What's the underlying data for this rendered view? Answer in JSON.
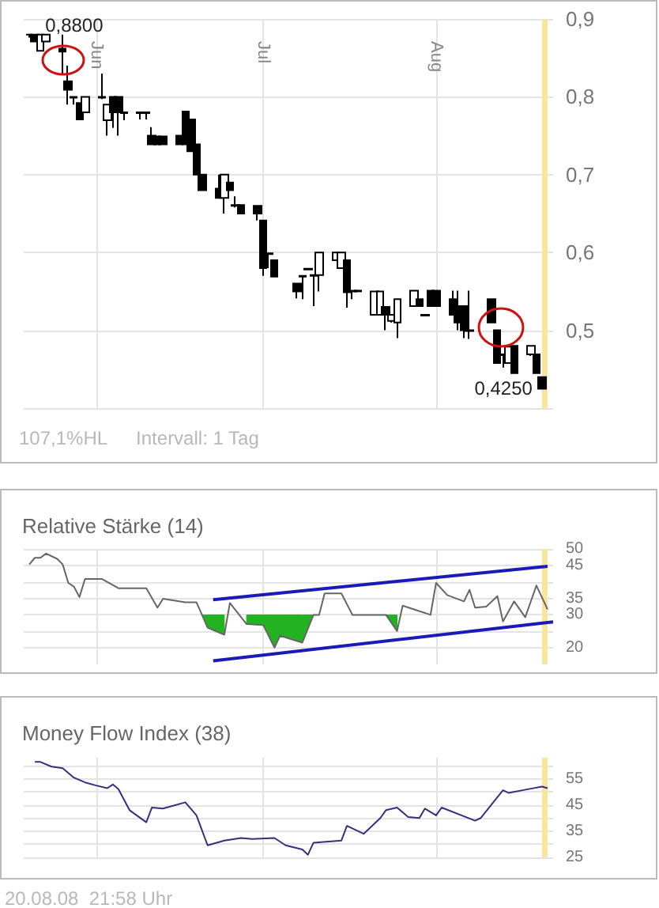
{
  "chart_data": [
    {
      "type": "candlestick",
      "color": "#000000",
      "x": [
        "--05-20",
        "--05-21",
        "--05-22",
        "--05-23",
        "--05-26",
        "--05-27",
        "--05-28",
        "--05-29",
        "--05-30",
        "--06-02",
        "--06-03",
        "--06-04",
        "--06-05",
        "--06-06",
        "--06-09",
        "--06-10",
        "--06-11",
        "--06-12",
        "--06-13",
        "--06-16",
        "--06-17",
        "--06-18",
        "--06-19",
        "--06-20",
        "--06-23",
        "--06-24",
        "--06-25",
        "--06-26",
        "--06-27",
        "--06-30",
        "--07-01",
        "--07-02",
        "--07-03",
        "--07-07",
        "--07-08",
        "--07-09",
        "--07-10",
        "--07-11",
        "--07-14",
        "--07-15",
        "--07-16",
        "--07-17",
        "--07-18",
        "--07-21",
        "--07-22",
        "--07-23",
        "--07-24",
        "--07-25",
        "--07-28",
        "--07-29",
        "--07-30",
        "--07-31",
        "--08-01",
        "--08-04",
        "--08-05",
        "--08-06",
        "--08-07",
        "--08-11",
        "--08-12",
        "--08-13",
        "--08-14",
        "--08-15",
        "--08-18",
        "--08-19",
        "--08-20"
      ],
      "ohlc": [
        [
          0.88,
          0.88,
          0.876,
          0.88
        ],
        [
          0.88,
          0.88,
          0.871,
          0.871
        ],
        [
          0.859,
          0.88,
          0.859,
          0.88
        ],
        [
          0.871,
          0.88,
          0.871,
          0.88
        ],
        [
          0.862,
          0.88,
          0.83,
          0.858
        ],
        [
          0.82,
          0.84,
          0.79,
          0.809
        ],
        [
          0.8,
          0.8,
          0.79,
          0.799
        ],
        [
          0.792,
          0.792,
          0.771,
          0.771
        ],
        [
          0.78,
          0.8,
          0.78,
          0.8
        ],
        [
          0.8,
          0.83,
          0.797,
          0.799
        ],
        [
          0.77,
          0.79,
          0.75,
          0.79
        ],
        [
          0.8,
          0.8,
          0.76,
          0.78
        ],
        [
          0.8,
          0.8,
          0.75,
          0.78
        ],
        [
          0.78,
          0.78,
          0.77,
          0.779
        ],
        [
          0.78,
          0.78,
          0.771,
          0.779
        ],
        [
          0.78,
          0.78,
          0.771,
          0.779
        ],
        [
          0.75,
          0.761,
          0.739,
          0.739
        ],
        [
          0.749,
          0.75,
          0.739,
          0.739
        ],
        [
          0.749,
          0.75,
          0.739,
          0.739
        ],
        [
          0.75,
          0.75,
          0.739,
          0.739
        ],
        [
          0.781,
          0.781,
          0.739,
          0.739
        ],
        [
          0.771,
          0.771,
          0.73,
          0.73
        ],
        [
          0.739,
          0.739,
          0.7,
          0.7
        ],
        [
          0.7,
          0.7,
          0.68,
          0.68
        ],
        [
          0.682,
          0.7,
          0.67,
          0.67
        ],
        [
          0.67,
          0.7,
          0.65,
          0.7
        ],
        [
          0.69,
          0.69,
          0.68,
          0.68
        ],
        [
          0.661,
          0.672,
          0.658,
          0.66
        ],
        [
          0.661,
          0.661,
          0.65,
          0.65
        ],
        [
          0.66,
          0.66,
          0.641,
          0.65
        ],
        [
          0.641,
          0.641,
          0.57,
          0.58
        ],
        [
          0.599,
          0.6,
          0.58,
          0.598
        ],
        [
          0.59,
          0.59,
          0.569,
          0.569
        ],
        [
          0.56,
          0.56,
          0.541,
          0.55
        ],
        [
          0.57,
          0.571,
          0.54,
          0.569
        ],
        [
          0.579,
          0.58,
          0.578,
          0.578
        ],
        [
          0.571,
          0.571,
          0.531,
          0.57
        ],
        [
          0.571,
          0.6,
          0.55,
          0.6
        ],
        [
          0.59,
          0.6,
          0.59,
          0.6
        ],
        [
          0.58,
          0.6,
          0.58,
          0.6
        ],
        [
          0.59,
          0.59,
          0.529,
          0.549
        ],
        [
          0.551,
          0.551,
          0.54,
          0.55
        ],
        [
          0.551,
          0.551,
          0.55,
          0.55
        ],
        [
          0.52,
          0.551,
          0.52,
          0.55
        ],
        [
          0.52,
          0.551,
          0.519,
          0.55
        ],
        [
          0.53,
          0.53,
          0.5,
          0.52
        ],
        [
          0.512,
          0.52,
          0.51,
          0.52
        ],
        [
          0.51,
          0.54,
          0.49,
          0.54
        ],
        [
          0.531,
          0.551,
          0.531,
          0.551
        ],
        [
          0.54,
          0.54,
          0.531,
          0.531
        ],
        [
          0.52,
          0.52,
          0.518,
          0.519
        ],
        [
          0.551,
          0.551,
          0.531,
          0.531
        ],
        [
          0.551,
          0.551,
          0.531,
          0.531
        ],
        [
          0.54,
          0.551,
          0.52,
          0.52
        ],
        [
          0.531,
          0.551,
          0.5,
          0.51
        ],
        [
          0.531,
          0.531,
          0.49,
          0.5
        ],
        [
          0.5,
          0.551,
          0.489,
          0.499
        ],
        [
          0.54,
          0.54,
          0.51,
          0.51
        ],
        [
          0.5,
          0.5,
          0.458,
          0.458
        ],
        [
          0.469,
          0.469,
          0.452,
          0.468
        ],
        [
          0.458,
          0.479,
          0.458,
          0.479
        ],
        [
          0.48,
          0.48,
          0.445,
          0.445
        ],
        [
          0.469,
          0.48,
          0.467,
          0.48
        ],
        [
          0.469,
          0.469,
          0.445,
          0.445
        ],
        [
          0.44,
          0.44,
          0.425,
          0.425
        ]
      ],
      "xlim": [
        "--05-19",
        "--08-22"
      ],
      "xticks": [
        {
          "value": "--06-01",
          "label": "Jun"
        },
        {
          "value": "--07-01",
          "label": "Jul"
        },
        {
          "value": "--08-01",
          "label": "Aug"
        }
      ],
      "ylim": [
        0.4,
        0.9
      ],
      "yticks": [
        {
          "value": 0.4,
          "label": null
        },
        {
          "value": 0.5,
          "label": "0,5"
        },
        {
          "value": 0.6,
          "label": "0,6"
        },
        {
          "value": 0.7,
          "label": "0,7"
        },
        {
          "value": 0.8,
          "label": "0,8"
        },
        {
          "value": 0.9,
          "label": "0,9"
        }
      ],
      "grid": true,
      "bands": [
        {
          "axis": "x",
          "from": "--08-20",
          "to": "--08-21",
          "color": "#f8e6a0"
        }
      ],
      "annotations": [
        {
          "text": "0,8800",
          "x": "--05-22",
          "y": 0.88
        },
        {
          "text": "0,4250",
          "x": "--08-20",
          "y": 0.425
        },
        "107,1%HL",
        "Intervall: 1 Tag"
      ]
    },
    {
      "type": "line",
      "title": "Relative Stärke (14)",
      "marker": "none",
      "grid": true,
      "tick_labels": "y",
      "xlim": [
        "--05-19",
        "--08-22"
      ],
      "xticks": [
        {
          "value": "--06-01",
          "label": null
        },
        {
          "value": "--07-01",
          "label": null
        },
        {
          "value": "--08-01",
          "label": null
        }
      ],
      "ylim": [
        15,
        50
      ],
      "yticks": [
        20,
        {
          "value": 25,
          "label": null
        },
        30,
        35,
        {
          "value": 40,
          "label": null
        },
        45,
        50
      ],
      "bands": [
        {
          "axis": "x",
          "from": "--08-20",
          "to": "--08-21",
          "color": "#f8e6a0"
        }
      ],
      "series": [
        {
          "color": "#666666",
          "x": [
            "--05-20",
            "--05-21",
            "--05-22",
            "--05-23",
            "--05-25",
            "--05-26",
            "--05-27",
            "--05-28",
            "--05-29",
            "--05-30",
            "--06-02",
            "--06-05",
            "--06-10",
            "--06-12",
            "--06-13",
            "--06-17",
            "--06-19",
            "--06-20",
            "--06-21",
            "--06-24",
            "--06-25",
            "--06-28",
            "--07-01",
            "--07-03",
            "--07-04",
            "--07-08",
            "--07-10",
            "--07-11",
            "--07-12",
            "--07-15",
            "--07-17",
            "--07-23",
            "--07-25",
            "--07-26",
            "--07-30",
            "--07-31",
            "--08-01",
            "--08-03",
            "--08-06",
            "--08-07",
            "--08-08",
            "--08-10",
            "--08-12",
            "--08-13",
            "--08-15",
            "--08-17",
            "--08-19",
            "--08-21"
          ],
          "values": [
            45.3,
            47.3,
            47.3,
            48.6,
            47,
            45.3,
            39.7,
            38.6,
            35.4,
            40.9,
            40.9,
            38.1,
            38.1,
            32.2,
            34.9,
            33.8,
            33.8,
            30,
            26.1,
            24,
            33.6,
            27.2,
            26.9,
            20.1,
            23.7,
            21.6,
            30,
            30,
            36.5,
            36.5,
            30,
            30,
            25.1,
            32.8,
            30.6,
            30,
            39.7,
            36,
            34.1,
            37.6,
            32.2,
            32.5,
            35.7,
            28,
            34.1,
            29.3,
            38.9,
            31.7
          ],
          "lower": [
            null,
            null,
            null,
            null,
            null,
            null,
            null,
            null,
            null,
            null,
            null,
            null,
            null,
            null,
            null,
            null,
            null,
            30,
            26.1,
            24,
            null,
            27.2,
            26.9,
            20.1,
            23.7,
            21.6,
            30,
            null,
            null,
            null,
            null,
            30,
            25.1,
            null,
            null,
            null,
            null,
            null,
            null,
            null,
            null,
            null,
            null,
            null,
            null,
            null,
            null,
            null
          ],
          "upper": [
            null,
            null,
            null,
            null,
            null,
            null,
            null,
            null,
            null,
            null,
            null,
            null,
            null,
            null,
            null,
            null,
            null,
            30,
            30,
            30,
            null,
            30,
            30,
            30,
            30,
            30,
            30,
            null,
            null,
            null,
            null,
            30,
            30,
            null,
            null,
            null,
            null,
            null,
            null,
            null,
            null,
            null,
            null,
            null,
            null,
            null,
            null,
            null
          ]
        },
        {
          "color": "#1a1ab8",
          "x": [
            "--06-22",
            "--08-21"
          ],
          "values": [
            34.6,
            44.7
          ]
        },
        {
          "color": "#1a1ab8",
          "x": [
            "--06-22",
            "--08-22"
          ],
          "values": [
            16.1,
            27.9
          ]
        }
      ]
    },
    {
      "type": "line",
      "title": "Money Flow Index (38)",
      "marker": "none",
      "grid": true,
      "tick_labels": "y",
      "xlim": [
        "--05-19",
        "--08-22"
      ],
      "xticks": [
        {
          "value": "--06-01",
          "label": null
        },
        {
          "value": "--07-01",
          "label": null
        },
        {
          "value": "--08-01",
          "label": null
        }
      ],
      "ylim": [
        25,
        63
      ],
      "yticks": [
        25,
        {
          "value": 30,
          "label": null
        },
        35,
        {
          "value": 40,
          "label": null
        },
        45,
        {
          "value": 50,
          "label": null
        },
        55,
        {
          "value": 60,
          "label": null
        }
      ],
      "bands": [
        {
          "axis": "x",
          "from": "--08-20",
          "to": "--08-21",
          "color": "#f8e6a0"
        }
      ],
      "annotations": [
        "20.08.08  21:58 Uhr"
      ],
      "series": [
        {
          "color": "#3b2d7e",
          "x": [
            "--05-21",
            "--05-22",
            "--05-24",
            "--05-26",
            "--05-28",
            "--05-30",
            "--06-01",
            "--06-03",
            "--06-04",
            "--06-05",
            "--06-07",
            "--06-10",
            "--06-11",
            "--06-13",
            "--06-17",
            "--06-19",
            "--06-21",
            "--06-24",
            "--06-27",
            "--06-29",
            "--07-03",
            "--07-05",
            "--07-08",
            "--07-09",
            "--07-10",
            "--07-15",
            "--07-16",
            "--07-19",
            "--07-22",
            "--07-23",
            "--07-25",
            "--07-27",
            "--07-29",
            "--07-30",
            "--08-01",
            "--08-02",
            "--08-08",
            "--08-09",
            "--08-13",
            "--08-14",
            "--08-18",
            "--08-20",
            "--08-21"
          ],
          "values": [
            61.4,
            61.4,
            59.6,
            59,
            55.4,
            53.6,
            52.4,
            51.4,
            52.8,
            51,
            43,
            38.4,
            44,
            43.6,
            46,
            41,
            29.6,
            31.4,
            32.4,
            32,
            32.4,
            29.6,
            28,
            26,
            30.6,
            31.4,
            37,
            34,
            40,
            43,
            44,
            40.4,
            40,
            43.6,
            41,
            44,
            39,
            40,
            50.6,
            49.6,
            51.2,
            52,
            51.4
          ]
        }
      ]
    }
  ]
}
